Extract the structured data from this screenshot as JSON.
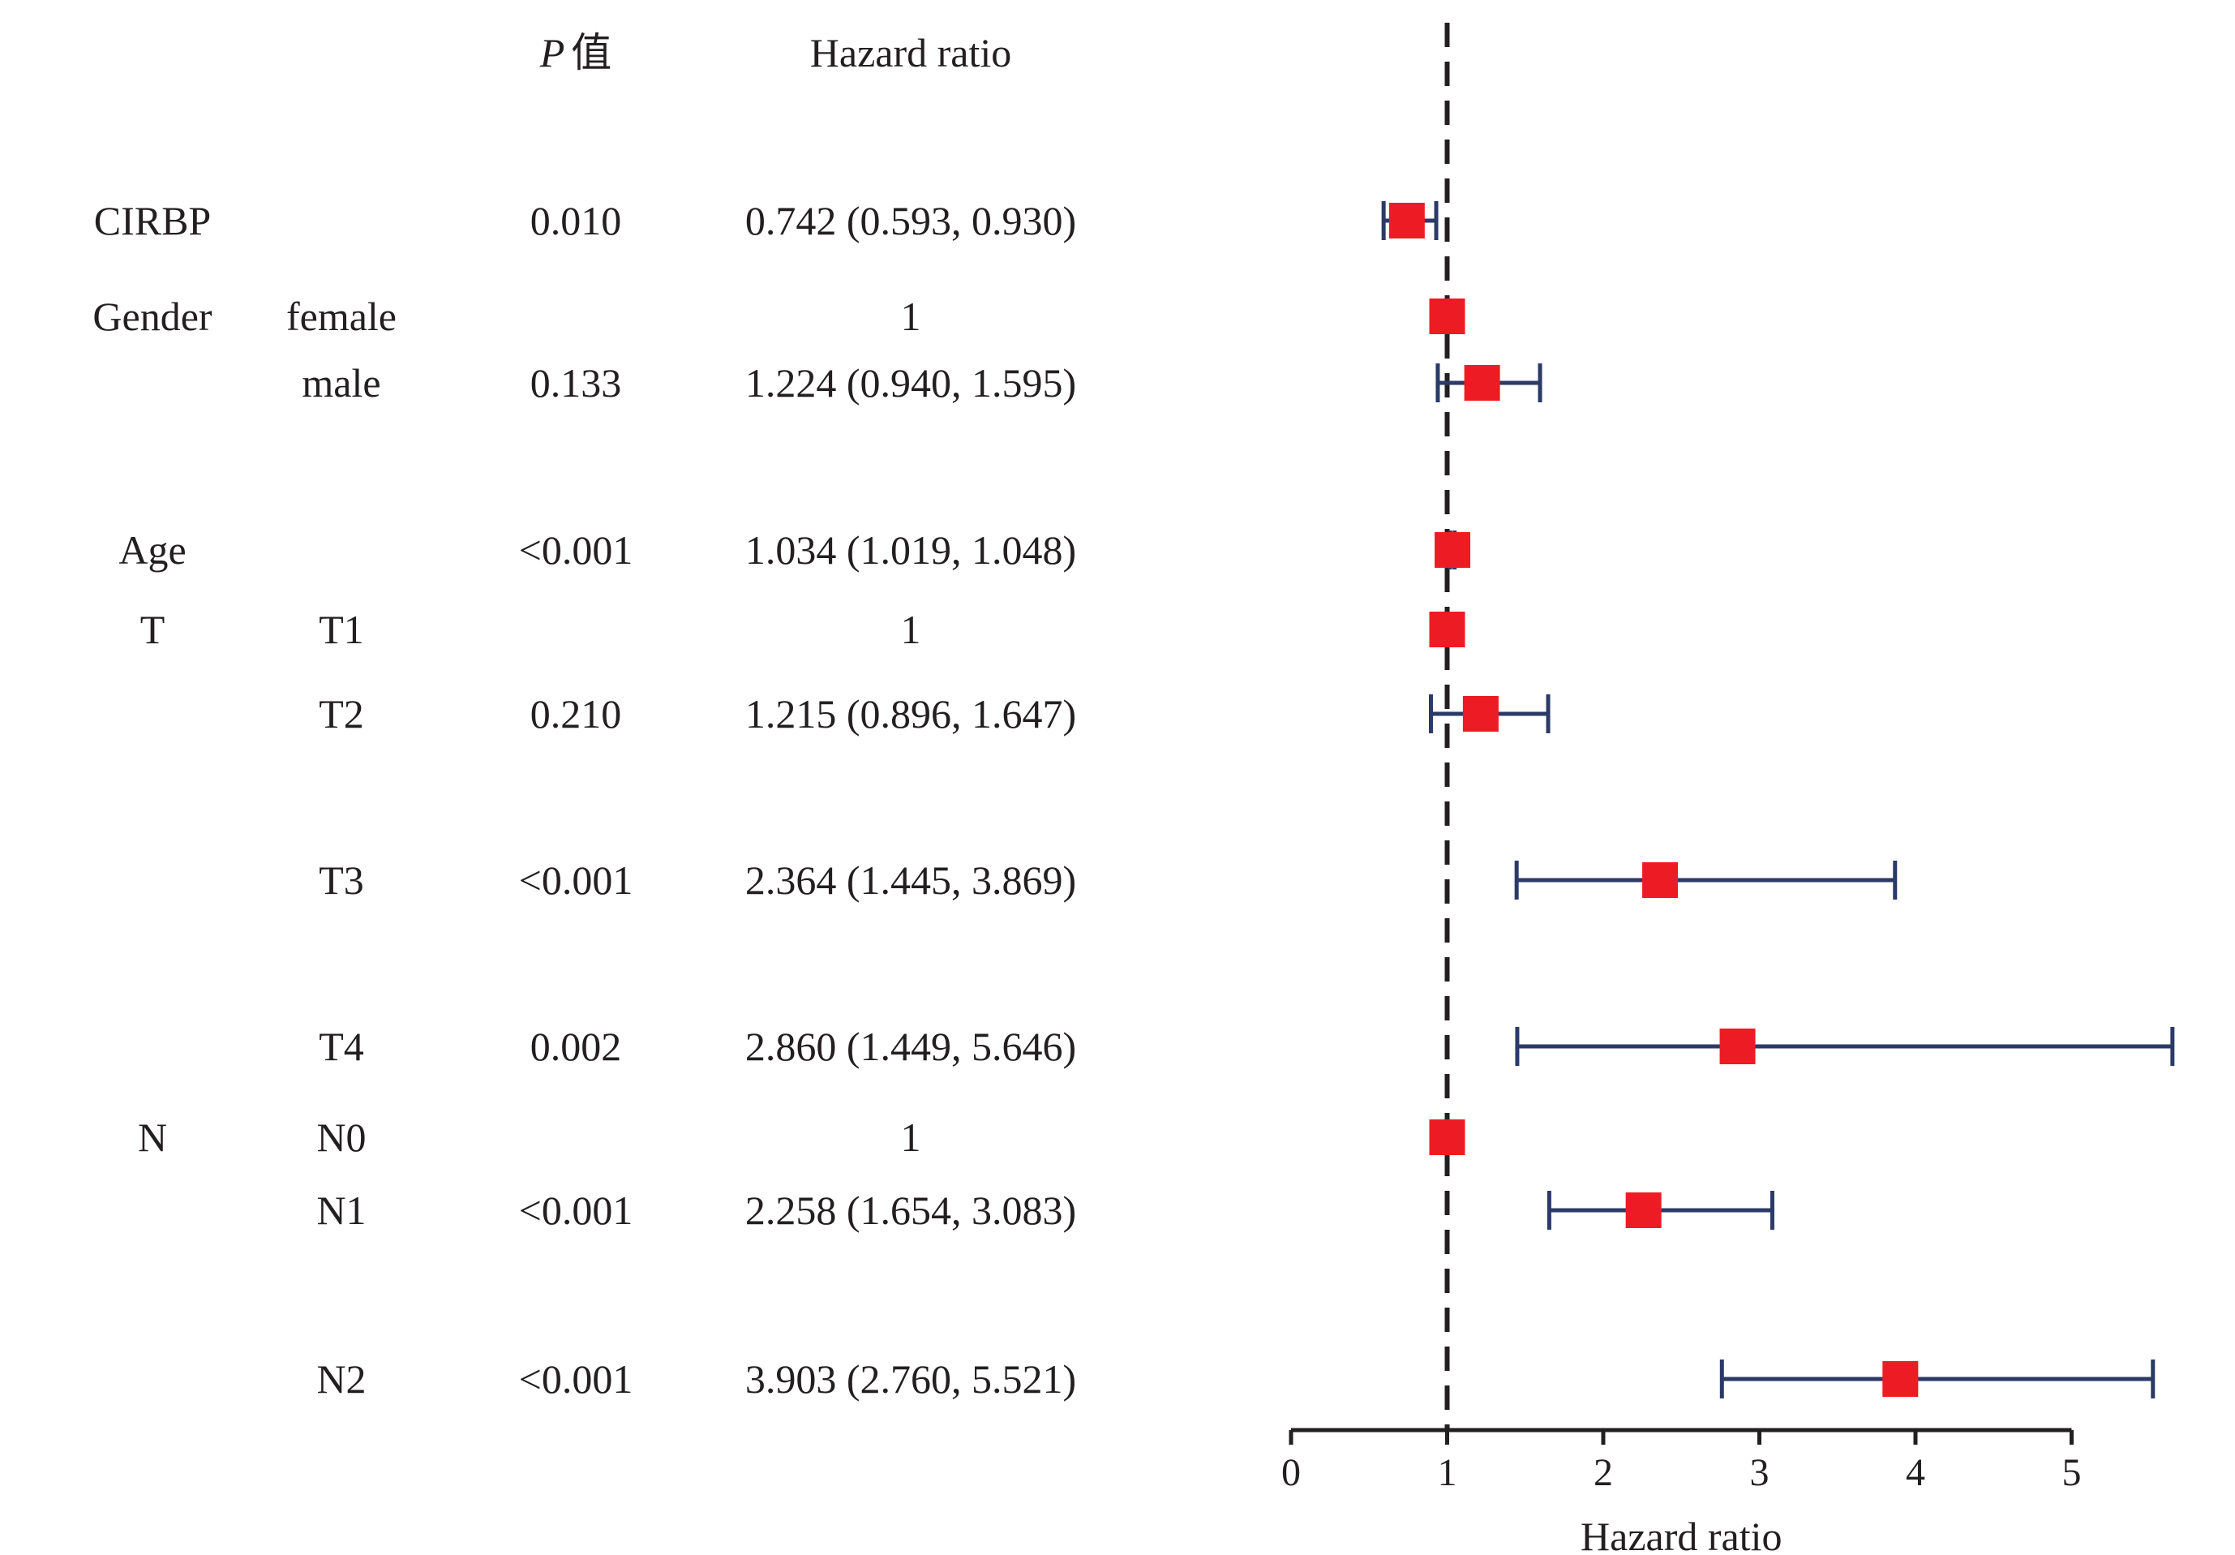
{
  "header": {
    "p_label_italic": "P",
    "p_label_suffix": "值",
    "hr_label": "Hazard ratio"
  },
  "rows": [
    {
      "variable": "CIRBP",
      "level": "",
      "p": "0.010",
      "hr_text": "0.742 (0.593, 0.930)"
    },
    {
      "variable": "Gender",
      "level": "female",
      "p": "",
      "hr_text": "1"
    },
    {
      "variable": "",
      "level": "male",
      "p": "0.133",
      "hr_text": "1.224 (0.940, 1.595)"
    },
    {
      "variable": "Age",
      "level": "",
      "p": "<0.001",
      "hr_text": "1.034 (1.019, 1.048)"
    },
    {
      "variable": "T",
      "level": "T1",
      "p": "",
      "hr_text": "1"
    },
    {
      "variable": "",
      "level": "T2",
      "p": "0.210",
      "hr_text": "1.215 (0.896, 1.647)"
    },
    {
      "variable": "",
      "level": "T3",
      "p": "<0.001",
      "hr_text": "2.364 (1.445, 3.869)"
    },
    {
      "variable": "",
      "level": "T4",
      "p": "0.002",
      "hr_text": "2.860 (1.449, 5.646)"
    },
    {
      "variable": "N",
      "level": "N0",
      "p": "",
      "hr_text": "1"
    },
    {
      "variable": "",
      "level": "N1",
      "p": "<0.001",
      "hr_text": "2.258 (1.654, 3.083)"
    },
    {
      "variable": "",
      "level": "N2",
      "p": "<0.001",
      "hr_text": "3.903 (2.760, 5.521)"
    }
  ],
  "chart_data": {
    "type": "scatter",
    "subtype": "forest-plot",
    "categories": [
      "CIRBP",
      "Gender female",
      "Gender male",
      "Age",
      "T1",
      "T2",
      "T3",
      "T4",
      "N0",
      "N1",
      "N2"
    ],
    "series": [
      {
        "values": [
          0.742,
          1,
          1.224,
          1.034,
          1,
          1.215,
          2.364,
          2.86,
          1,
          2.258,
          3.903
        ],
        "lower": [
          0.593,
          null,
          0.94,
          1.019,
          null,
          0.896,
          1.445,
          1.449,
          null,
          1.654,
          2.76
        ],
        "upper": [
          0.93,
          null,
          1.595,
          1.048,
          null,
          1.647,
          3.869,
          5.646,
          null,
          3.083,
          5.521
        ]
      }
    ],
    "xlabel": "Hazard ratio",
    "xlim": [
      0,
      5
    ],
    "xticks": [
      "0",
      "1",
      "2",
      "3",
      "4",
      "5"
    ],
    "reference_line": 1,
    "grid": false,
    "colors": {
      "marker": "#ed1c24",
      "ci": "#2b3a67",
      "reference": "#231f20",
      "axis": "#231f20"
    }
  }
}
